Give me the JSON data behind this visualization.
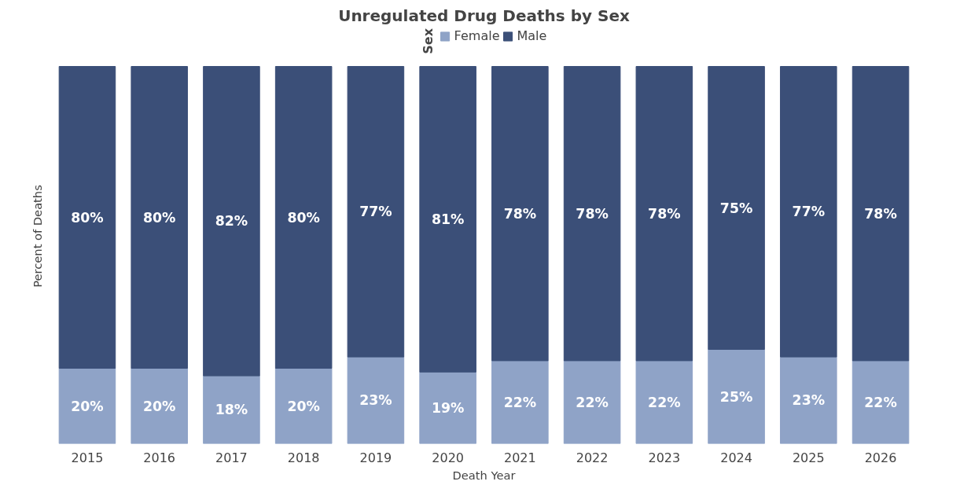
{
  "chart_data": {
    "type": "bar",
    "title": "Unregulated Drug Deaths by Sex",
    "xlabel": "Death Year",
    "ylabel": "Percent of Deaths",
    "legend_title": "Sex",
    "legend": "top",
    "stacked": true,
    "tick_labels": "x",
    "categories": [
      "2015",
      "2016",
      "2017",
      "2018",
      "2019",
      "2020",
      "2021",
      "2022",
      "2023",
      "2024",
      "2025",
      "2026"
    ],
    "series": [
      {
        "name": "Female",
        "color": "#8fa3c7",
        "values": [
          20,
          20,
          18,
          20,
          23,
          19,
          22,
          22,
          22,
          25,
          23,
          22
        ],
        "value_labels": [
          "20%",
          "20%",
          "18%",
          "20%",
          "23%",
          "19%",
          "22%",
          "22%",
          "22%",
          "25%",
          "23%",
          "22%"
        ]
      },
      {
        "name": "Male",
        "color": "#3b4f78",
        "values": [
          80,
          80,
          82,
          80,
          77,
          81,
          78,
          78,
          78,
          75,
          77,
          78
        ],
        "value_labels": [
          "80%",
          "80%",
          "82%",
          "80%",
          "77%",
          "81%",
          "78%",
          "78%",
          "78%",
          "75%",
          "77%",
          "78%"
        ]
      }
    ]
  }
}
